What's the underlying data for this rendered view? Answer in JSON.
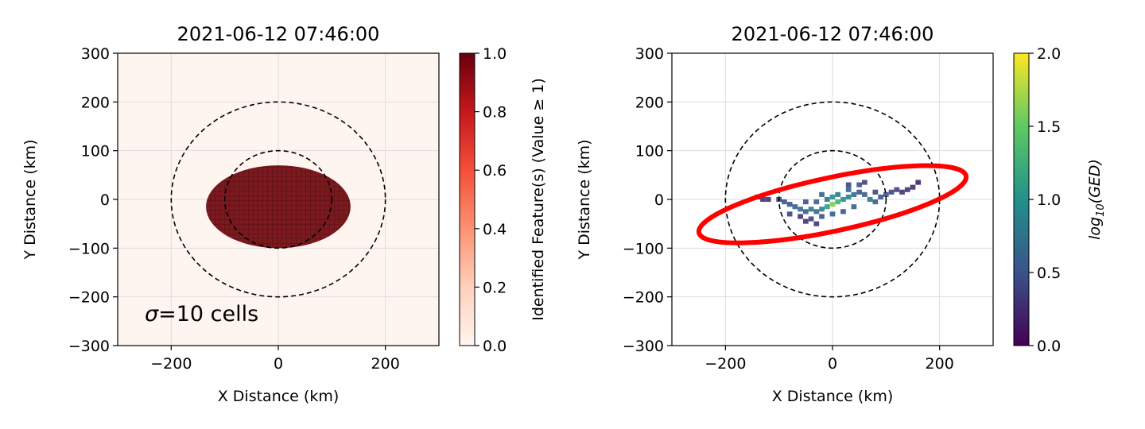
{
  "chart_data": [
    {
      "type": "heatmap",
      "title": "2021-06-12 07:46:00",
      "xlabel": "X Distance (km)",
      "ylabel": "Y Distance (km)",
      "xlim": [
        -300,
        300
      ],
      "ylim": [
        -300,
        300
      ],
      "xticks": [
        -200,
        0,
        200
      ],
      "yticks": [
        -300,
        -200,
        -100,
        0,
        100,
        200,
        300
      ],
      "grid": true,
      "annotation": "=10 cells",
      "annotation_symbol": "σ",
      "feature": {
        "shape": "ellipse",
        "center": [
          0,
          -15
        ],
        "semi_axes": [
          135,
          85
        ],
        "value": 1.0
      },
      "circles": [
        {
          "center": [
            0,
            0
          ],
          "radius": 100,
          "style": "dashed"
        },
        {
          "center": [
            0,
            0
          ],
          "radius": 200,
          "style": "dashed"
        }
      ],
      "colorbar": {
        "label": "Identified Feature(s) (Value ≥ 1)",
        "range": [
          0.0,
          1.0
        ],
        "ticks": [
          "0.0",
          "0.2",
          "0.4",
          "0.6",
          "0.8",
          "1.0"
        ],
        "colormap": "Reds"
      }
    },
    {
      "type": "heatmap",
      "title": "2021-06-12 07:46:00",
      "xlabel": "X Distance (km)",
      "ylabel": "Y Distance (km)",
      "xlim": [
        -300,
        300
      ],
      "ylim": [
        -300,
        300
      ],
      "xticks": [
        -200,
        0,
        200
      ],
      "yticks": [
        -300,
        -200,
        -100,
        0,
        100,
        200,
        300
      ],
      "grid": true,
      "cells": [
        [
          -140,
          5,
          0.3
        ],
        [
          -130,
          0,
          0.3
        ],
        [
          -120,
          0,
          0.3
        ],
        [
          -100,
          0,
          0.4
        ],
        [
          -90,
          -5,
          0.5
        ],
        [
          -80,
          -10,
          0.5
        ],
        [
          -70,
          -15,
          0.6
        ],
        [
          -60,
          -20,
          0.7
        ],
        [
          -50,
          -25,
          0.6
        ],
        [
          -40,
          -20,
          0.8
        ],
        [
          -30,
          -25,
          0.7
        ],
        [
          -20,
          -20,
          0.9
        ],
        [
          -10,
          -15,
          1.1
        ],
        [
          0,
          -10,
          1.6
        ],
        [
          10,
          -5,
          1.3
        ],
        [
          20,
          0,
          1.0
        ],
        [
          30,
          5,
          0.9
        ],
        [
          40,
          10,
          0.7
        ],
        [
          50,
          15,
          0.5
        ],
        [
          60,
          10,
          0.6
        ],
        [
          70,
          0,
          0.8
        ],
        [
          80,
          -5,
          0.6
        ],
        [
          90,
          5,
          0.5
        ],
        [
          100,
          10,
          0.5
        ],
        [
          110,
          15,
          0.4
        ],
        [
          120,
          20,
          0.4
        ],
        [
          130,
          15,
          0.3
        ],
        [
          140,
          20,
          0.3
        ],
        [
          150,
          25,
          0.3
        ],
        [
          160,
          35,
          0.2
        ],
        [
          -80,
          -30,
          0.4
        ],
        [
          -60,
          -35,
          0.3
        ],
        [
          -40,
          -40,
          0.4
        ],
        [
          -20,
          -35,
          0.5
        ],
        [
          0,
          -30,
          0.6
        ],
        [
          20,
          -25,
          0.5
        ],
        [
          40,
          -15,
          0.6
        ],
        [
          -50,
          -5,
          0.5
        ],
        [
          -30,
          -5,
          0.6
        ],
        [
          -10,
          0,
          0.8
        ],
        [
          10,
          10,
          0.8
        ],
        [
          30,
          20,
          0.6
        ],
        [
          50,
          30,
          0.5
        ],
        [
          60,
          35,
          0.4
        ],
        [
          30,
          30,
          0.4
        ],
        [
          -20,
          10,
          0.6
        ],
        [
          0,
          5,
          1.0
        ],
        [
          -30,
          -50,
          0.3
        ],
        [
          -50,
          -45,
          0.3
        ],
        [
          80,
          15,
          0.4
        ]
      ],
      "ellipse_fit": {
        "center": [
          0,
          -10
        ],
        "semi_major": 255,
        "semi_minor": 55,
        "angle_deg": 12,
        "color": "#ff0000"
      },
      "circles": [
        {
          "center": [
            0,
            0
          ],
          "radius": 100,
          "style": "dashed"
        },
        {
          "center": [
            0,
            0
          ],
          "radius": 200,
          "style": "dashed"
        }
      ],
      "colorbar": {
        "label_base": "log",
        "label_sub": "10",
        "label_arg": "(GED)",
        "range": [
          0.0,
          2.0
        ],
        "ticks": [
          "0.0",
          "0.5",
          "1.0",
          "1.5",
          "2.0"
        ],
        "colormap": "viridis"
      }
    }
  ]
}
